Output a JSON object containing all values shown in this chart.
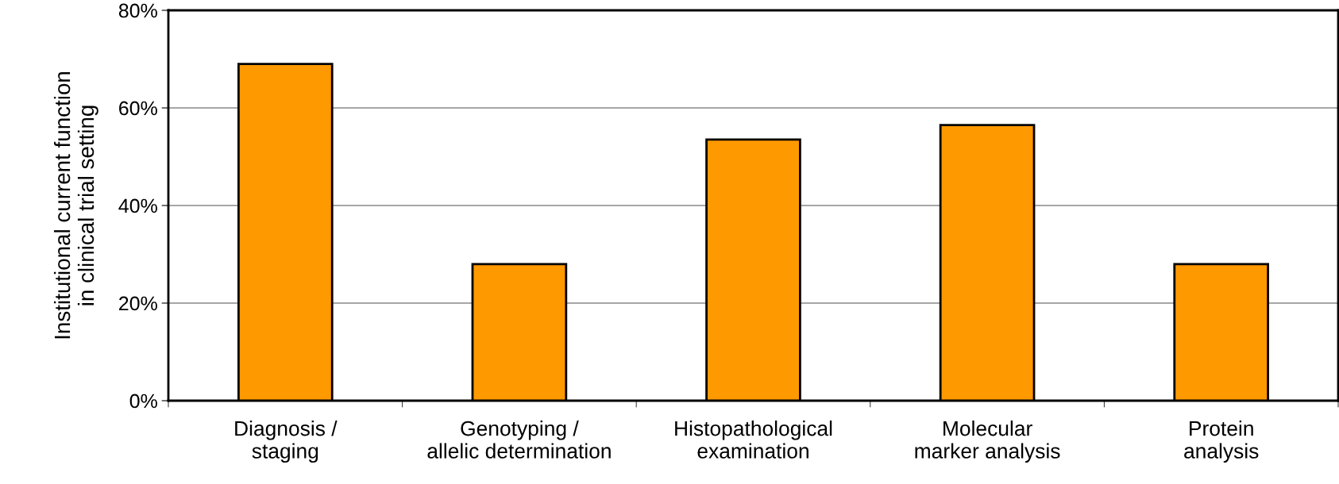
{
  "chart_data": {
    "type": "bar",
    "ylabel": "Institutional current function\nin clinical trial setting",
    "categories": [
      "Diagnosis /\nstaging",
      "Genotyping /\nallelic determination",
      "Histopathological\nexamination",
      "Molecular\nmarker analysis",
      "Protein\nanalysis"
    ],
    "values": [
      69,
      28,
      53.5,
      56.5,
      28
    ],
    "color": "#ff9900",
    "ylim": [
      0,
      80
    ],
    "yticks": [
      {
        "value": 0,
        "label": "0%"
      },
      {
        "value": 20,
        "label": "20%"
      },
      {
        "value": 40,
        "label": "40%"
      },
      {
        "value": 60,
        "label": "60%"
      },
      {
        "value": 80,
        "label": "80%"
      }
    ],
    "grid": "y",
    "legend": false
  }
}
